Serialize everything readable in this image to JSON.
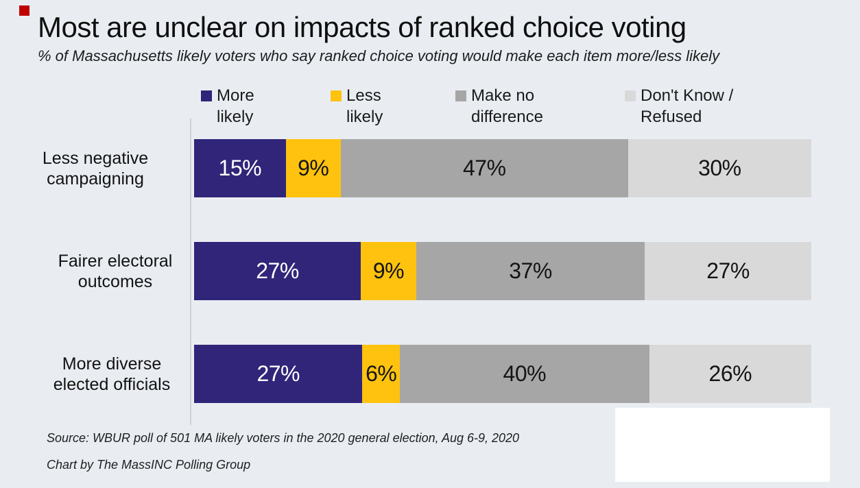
{
  "page": {
    "background_color": "#e9edf2",
    "accent_square_color": "#c00000"
  },
  "header": {
    "title": "Most are unclear on impacts of ranked choice voting",
    "subtitle": "% of Massachusetts likely voters who say ranked choice voting would make each item more/less likely"
  },
  "chart_data": {
    "type": "bar",
    "variant": "horizontal-stacked",
    "unit": "%",
    "xlim": [
      0,
      100
    ],
    "grid": false,
    "legend_position": "top",
    "categories": [
      "Less negative campaigning",
      "Fairer electoral outcomes",
      "More diverse elected officials"
    ],
    "category_label_lines": [
      [
        "Less negative",
        "campaigning"
      ],
      [
        "Fairer electoral",
        "outcomes"
      ],
      [
        "More diverse",
        "elected officials"
      ]
    ],
    "series": [
      {
        "name": "More likely",
        "legend_lines": [
          "More",
          "likely"
        ],
        "color": "#302579",
        "value_text_color": "#ffffff",
        "values": [
          15,
          27,
          27
        ]
      },
      {
        "name": "Less likely",
        "legend_lines": [
          "Less",
          "likely"
        ],
        "color": "#ffc20e",
        "value_text_color": "#141414",
        "values": [
          9,
          9,
          6
        ]
      },
      {
        "name": "Make no difference",
        "legend_lines": [
          "Make no",
          "difference"
        ],
        "color": "#a6a6a6",
        "value_text_color": "#141414",
        "values": [
          47,
          37,
          40
        ]
      },
      {
        "name": "Don't Know / Refused",
        "legend_lines": [
          "Don't Know /",
          "Refused"
        ],
        "color": "#d9d9d9",
        "value_text_color": "#141414",
        "values": [
          30,
          27,
          26
        ]
      }
    ]
  },
  "footer": {
    "source": "Source: WBUR poll of 501 MA likely voters in the 2020 general election, Aug 6-9, 2020",
    "credit": "Chart by The MassINC Polling Group"
  }
}
